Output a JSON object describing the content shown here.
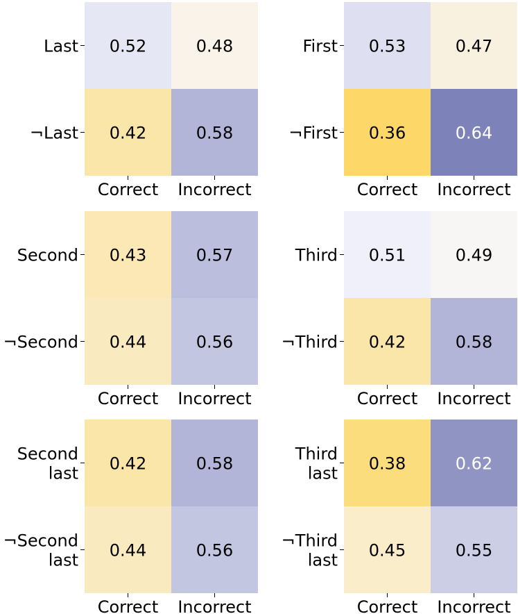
{
  "chart_data": [
    {
      "type": "heatmap",
      "rows": [
        "Last",
        "¬Last"
      ],
      "columns": [
        "Correct",
        "Incorrect"
      ],
      "values": [
        [
          0.52,
          0.48
        ],
        [
          0.42,
          0.58
        ]
      ]
    },
    {
      "type": "heatmap",
      "rows": [
        "First",
        "¬First"
      ],
      "columns": [
        "Correct",
        "Incorrect"
      ],
      "values": [
        [
          0.53,
          0.47
        ],
        [
          0.36,
          0.64
        ]
      ]
    },
    {
      "type": "heatmap",
      "rows": [
        "Second",
        "¬Second"
      ],
      "columns": [
        "Correct",
        "Incorrect"
      ],
      "values": [
        [
          0.43,
          0.57
        ],
        [
          0.44,
          0.56
        ]
      ]
    },
    {
      "type": "heatmap",
      "rows": [
        "Third",
        "¬Third"
      ],
      "columns": [
        "Correct",
        "Incorrect"
      ],
      "values": [
        [
          0.51,
          0.49
        ],
        [
          0.42,
          0.58
        ]
      ]
    },
    {
      "type": "heatmap",
      "rows": [
        "Second last",
        "¬Second last"
      ],
      "columns": [
        "Correct",
        "Incorrect"
      ],
      "values": [
        [
          0.42,
          0.58
        ],
        [
          0.44,
          0.56
        ]
      ]
    },
    {
      "type": "heatmap",
      "rows": [
        "Third last",
        "¬Third last"
      ],
      "columns": [
        "Correct",
        "Incorrect"
      ],
      "values": [
        [
          0.38,
          0.62
        ],
        [
          0.45,
          0.55
        ]
      ]
    }
  ],
  "colors": {
    "low": "#fdd869",
    "mid": "#f8f8ff",
    "high": "#7d83b9",
    "text_dark": "#000000",
    "text_light": "#ffffff"
  }
}
